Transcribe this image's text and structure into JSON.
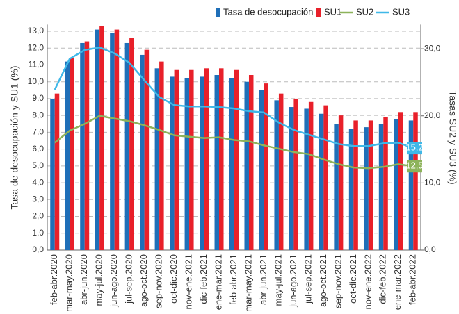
{
  "chart_data": {
    "type": "bar",
    "categories": [
      "feb-abr.2020",
      "mar-may.2020",
      "abr-jun.2020",
      "may-jul.2020",
      "jun-ago.2020",
      "jul-sep.2020",
      "ago-oct.2020",
      "sep-nov.2020",
      "oct-dic.2020",
      "nov-ene.2021",
      "dic-feb.2021",
      "ene-mar.2021",
      "feb-abr.2021",
      "mar-may.2021",
      "abr-jun.2021",
      "may-jul.2021",
      "jun-ago.2021",
      "jul-sep.2021",
      "ago-oct.2021",
      "sep-nov.2021",
      "oct-dic.2021",
      "nov-ene.2022",
      "dic-feb.2022",
      "ene-mar.2022",
      "feb-abr.2022"
    ],
    "y_label": "Tasa de desocupación y SU1 (%)",
    "y2_label": "Tasas SU2 y SU3 (%)",
    "ylim": [
      0,
      13.4
    ],
    "yticks": [
      {
        "value": 0,
        "label": "0,0"
      },
      {
        "value": 1,
        "label": "1,0"
      },
      {
        "value": 2,
        "label": "2,0"
      },
      {
        "value": 3,
        "label": "3,0"
      },
      {
        "value": 4,
        "label": "4,0"
      },
      {
        "value": 5,
        "label": "5,0"
      },
      {
        "value": 6,
        "label": "6,0"
      },
      {
        "value": 7,
        "label": "7,0"
      },
      {
        "value": 8,
        "label": "8,0"
      },
      {
        "value": 9,
        "label": "9,0"
      },
      {
        "value": 10,
        "label": "10,0"
      },
      {
        "value": 11,
        "label": "11,0"
      },
      {
        "value": 12,
        "label": "12,0"
      },
      {
        "value": 13,
        "label": "13,0"
      }
    ],
    "y2lim": [
      0,
      33.6
    ],
    "y2ticks": [
      {
        "value": 0,
        "label": "0,0"
      },
      {
        "value": 10,
        "label": "10,0"
      },
      {
        "value": 20,
        "label": "20,0"
      },
      {
        "value": 30,
        "label": "30,0"
      }
    ],
    "grid": true,
    "legend": "top",
    "series": [
      {
        "name": "Tasa de desocupación",
        "type": "bar",
        "color": "#1f6fb8",
        "values": [
          9.0,
          11.2,
          12.3,
          13.1,
          12.9,
          12.3,
          11.6,
          10.8,
          10.3,
          10.2,
          10.3,
          10.4,
          10.2,
          10.0,
          9.5,
          8.9,
          8.5,
          8.4,
          8.1,
          7.5,
          7.2,
          7.3,
          7.5,
          7.8,
          7.7
        ]
      },
      {
        "name": "SU1",
        "type": "bar",
        "color": "#e8202a",
        "values": [
          9.3,
          11.4,
          12.4,
          13.3,
          13.1,
          12.6,
          11.9,
          11.2,
          10.7,
          10.7,
          10.8,
          10.8,
          10.7,
          10.4,
          9.9,
          9.3,
          9.0,
          8.8,
          8.6,
          8.0,
          7.7,
          7.7,
          7.9,
          8.2,
          8.2
        ]
      },
      {
        "name": "SU2",
        "type": "line",
        "axis": "y2",
        "color": "#8db35a",
        "values": [
          16.0,
          17.8,
          18.8,
          20.0,
          19.6,
          19.2,
          18.6,
          17.9,
          17.1,
          16.9,
          16.7,
          16.8,
          16.4,
          16.2,
          15.6,
          15.1,
          14.6,
          14.3,
          13.5,
          12.8,
          12.3,
          12.2,
          12.4,
          12.8,
          12.5
        ],
        "value_labels": [
          null,
          null,
          null,
          null,
          null,
          null,
          null,
          null,
          null,
          null,
          null,
          null,
          null,
          null,
          null,
          null,
          null,
          null,
          null,
          null,
          null,
          null,
          null,
          null,
          "12,5"
        ]
      },
      {
        "name": "SU3",
        "type": "line",
        "axis": "y2",
        "color": "#3fb8e8",
        "values": [
          23.9,
          28.5,
          29.8,
          30.2,
          29.3,
          27.9,
          25.3,
          22.8,
          21.6,
          21.4,
          21.4,
          21.3,
          21.1,
          20.7,
          20.5,
          19.0,
          17.9,
          17.2,
          16.5,
          15.8,
          15.5,
          15.5,
          15.9,
          16.0,
          15.2
        ],
        "value_labels": [
          null,
          null,
          null,
          null,
          null,
          null,
          null,
          null,
          null,
          null,
          null,
          null,
          null,
          null,
          null,
          null,
          null,
          null,
          null,
          null,
          null,
          null,
          null,
          null,
          "15,2"
        ]
      }
    ]
  }
}
